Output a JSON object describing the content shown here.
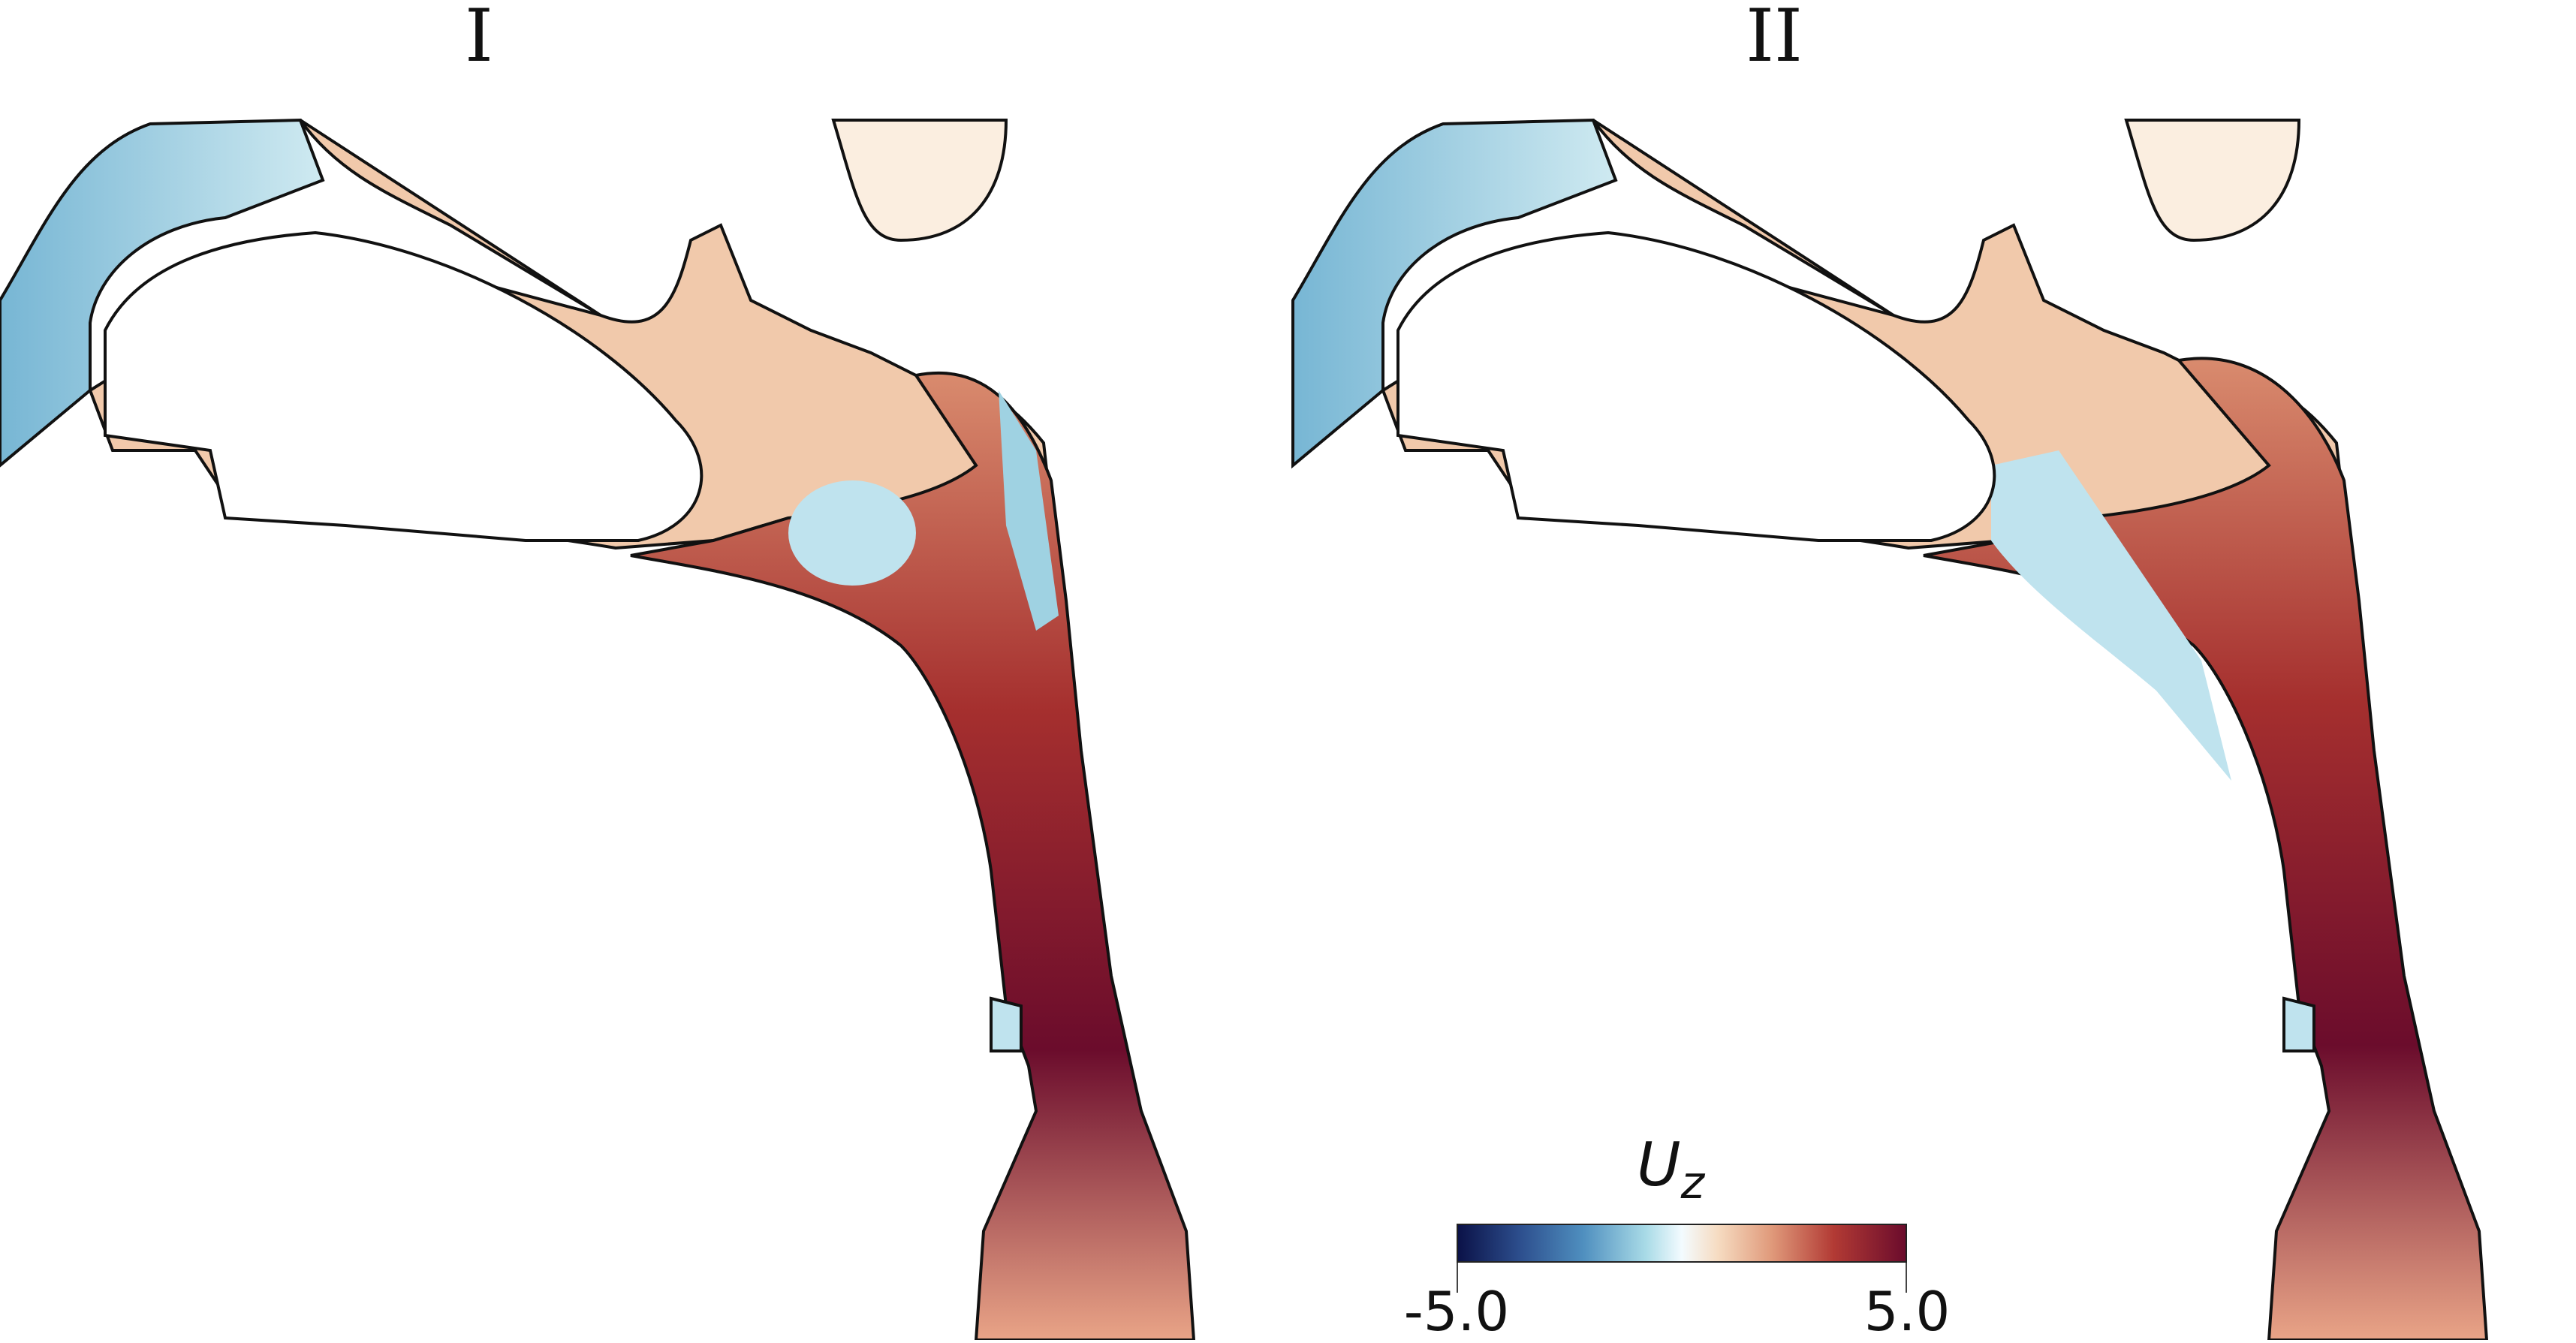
{
  "panels": [
    {
      "title": "I"
    },
    {
      "title": "II"
    }
  ],
  "colorbar": {
    "variable": "U",
    "subscript": "z",
    "min_label": "-5.0",
    "max_label": "5.0",
    "min": -5.0,
    "max": 5.0,
    "colors": [
      "#0b1248",
      "#4f8fbf",
      "#f3fbff",
      "#e09a7b",
      "#6b0c2c"
    ]
  }
}
